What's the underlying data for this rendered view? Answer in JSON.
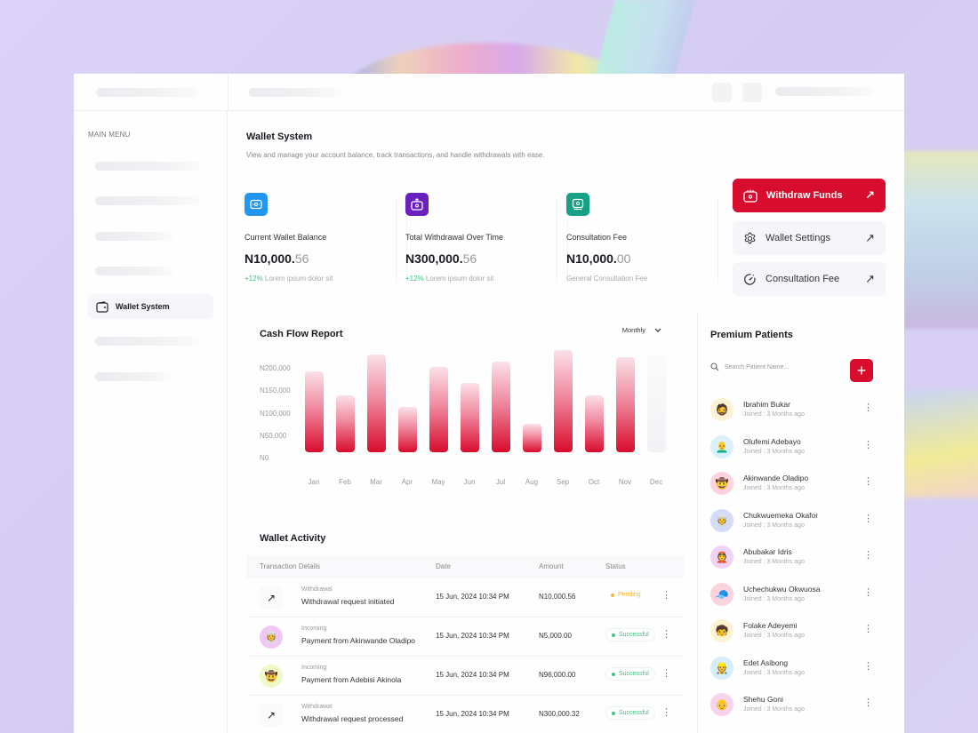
{
  "sidebar": {
    "menu_label": "MAIN MENU",
    "active_item": {
      "label": "Wallet System",
      "icon": "wallet-icon"
    }
  },
  "page": {
    "title": "Wallet System",
    "subtitle": "View and manage your account balance, track transactions, and handle withdrawals with ease."
  },
  "stats": [
    {
      "label": "Current Wallet  Balance",
      "value_main": "N10,000.",
      "value_dec": "56",
      "pct": "+12%",
      "note": " Lorem ipsum dolor sit",
      "icon": "wallet-icon",
      "color": "#2196f3"
    },
    {
      "label": "Total Withdrawal Over Time",
      "value_main": "N300,000.",
      "value_dec": "56",
      "pct": "+12%",
      "note": " Lorem ipsum dolor sit",
      "icon": "withdraw-icon",
      "color": "#6a1fbf"
    },
    {
      "label": "Consultation Fee",
      "value_main": "N10,000.",
      "value_dec": "00",
      "pct": "",
      "note": "General Consultation Fee",
      "icon": "cash-icon",
      "color": "#16a085"
    }
  ],
  "actions": {
    "withdraw": {
      "label": "Withdraw Funds",
      "arrow": "↗"
    },
    "settings": {
      "label": "Wallet Settings",
      "arrow": "↗"
    },
    "consultation": {
      "label": "Consultation Fee",
      "arrow": "↗"
    }
  },
  "cash_flow": {
    "title": "Cash Flow Report",
    "period": "Monthly",
    "y_ticks": [
      "N200,000",
      "N150,000",
      "N100,000",
      "N50,000",
      "N0"
    ]
  },
  "chart_data": {
    "type": "bar",
    "title": "Cash Flow Report",
    "categories": [
      "Jan",
      "Feb",
      "Mar",
      "Apr",
      "May",
      "Jun",
      "Jul",
      "Aug",
      "Sep",
      "Oct",
      "Nov",
      "Dec"
    ],
    "values": [
      170000,
      120000,
      205000,
      95000,
      180000,
      145000,
      190000,
      60000,
      215000,
      120000,
      200000,
      0
    ],
    "xlabel": "",
    "ylabel": "",
    "ylim": [
      0,
      200000
    ],
    "y_ticks": [
      "N0",
      "N50,000",
      "N100,000",
      "N150,000",
      "N200,000"
    ],
    "grid": false,
    "legend": "none"
  },
  "activity": {
    "title": "Wallet Activity",
    "headers": [
      "Transaction Details",
      "Date",
      "Amount",
      "Status"
    ],
    "rows": [
      {
        "type": "Withdrawal",
        "desc": "Withdrawal request initiated",
        "date": "15 Jun, 2024 10:34 PM",
        "amount": "N10,000.56",
        "status": "Pending",
        "avatar": "↗"
      },
      {
        "type": "Incoming",
        "desc": "Payment from Akinwande Oladipo",
        "date": "15 Jun, 2024 10:34 PM",
        "amount": "N5,000.00",
        "status": "Successful",
        "avatar": "👳"
      },
      {
        "type": "Incoming",
        "desc": "Payment from Adebisi Akinola",
        "date": "15 Jun, 2024 10:34 PM",
        "amount": "N96,000.00",
        "status": "Successful",
        "avatar": "🤠"
      },
      {
        "type": "Withdrawal",
        "desc": "Withdrawal request processed",
        "date": "15 Jun, 2024 10:34 PM",
        "amount": "N300,000.32",
        "status": "Successful",
        "avatar": "↗"
      }
    ]
  },
  "patients": {
    "title": "Premium Patients",
    "search_placeholder": "Search Patient Name...",
    "add_label": "+",
    "list": [
      {
        "name": "Ibrahim Bukar",
        "joined": "Joined : 3 Months ago",
        "bg": "#fdf1d6"
      },
      {
        "name": "Olufemi Adebayo",
        "joined": "Joined : 3 Months ago",
        "bg": "#daf0fb"
      },
      {
        "name": "Akinwande Oladipo",
        "joined": "Joined : 3 Months ago",
        "bg": "#fbd3dc"
      },
      {
        "name": "Chukwuemeka Okafor",
        "joined": "Joined : 3 Months ago",
        "bg": "#d4dcf7"
      },
      {
        "name": "Abubakar Idris",
        "joined": "Joined : 3 Months ago",
        "bg": "#efd3f7"
      },
      {
        "name": "Uchechukwu Okwuosa",
        "joined": "Joined : 3 Months ago",
        "bg": "#fbd3dc"
      },
      {
        "name": "Folake Adeyemi",
        "joined": "Joined : 3 Months ago",
        "bg": "#fdf3d2"
      },
      {
        "name": "Edet Asibong",
        "joined": "Joined : 3 Months ago",
        "bg": "#d6eefb"
      },
      {
        "name": "Shehu Goni",
        "joined": "Joined : 3 Months ago",
        "bg": "#f8d3ec"
      }
    ]
  },
  "colors": {
    "accent": "#d80c2c",
    "success": "#3dc47e",
    "pending": "#f5b63a"
  }
}
